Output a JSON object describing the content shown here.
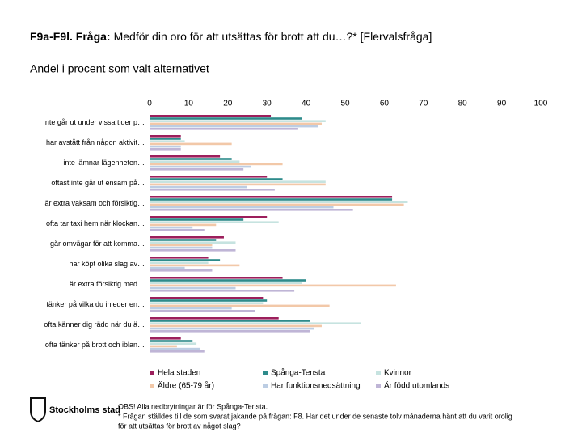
{
  "chart_data": {
    "type": "bar",
    "orientation": "horizontal",
    "title_label": "F9a-F9l. Fråga:",
    "title": "Medför din oro för att utsättas för brott att du…?* [Flervalsfråga]",
    "subtitle": "Andel i procent som valt alternativet",
    "categories": [
      "nte går ut under vissa tider p…",
      "har avstått från någon aktivit…",
      "inte lämnar lägenheten…",
      "oftast inte går ut ensam på…",
      "är extra vaksam och försiktig…",
      "ofta tar taxi hem när klockan…",
      "går omvägar för att komma…",
      "har köpt olika slag av…",
      "är extra försiktig med…",
      "tänker på vilka du inleder en…",
      "ofta känner dig rädd när du ä…",
      "ofta tänker på brott och iblan…"
    ],
    "series": [
      {
        "name": "Hela staden",
        "color": "#9c1f5c",
        "values": [
          31,
          8,
          18,
          30,
          62,
          30,
          19,
          15,
          34,
          29,
          33,
          8
        ]
      },
      {
        "name": "Spånga-Tensta",
        "color": "#2e8b8b",
        "values": [
          39,
          8,
          21,
          34,
          62,
          24,
          17,
          18,
          40,
          30,
          41,
          11
        ]
      },
      {
        "name": "Kvinnor",
        "color": "#c6e3e0",
        "values": [
          45,
          9,
          23,
          45,
          66,
          33,
          22,
          15,
          39,
          29,
          54,
          12
        ]
      },
      {
        "name": "Äldre (65-79 år)",
        "color": "#f2c8a8",
        "values": [
          44,
          21,
          34,
          45,
          65,
          17,
          16,
          23,
          63,
          46,
          44,
          7
        ]
      },
      {
        "name": "Har funktionsnedsättning",
        "color": "#bccde3",
        "values": [
          43,
          8,
          26,
          25,
          47,
          11,
          16,
          9,
          22,
          21,
          42,
          13
        ]
      },
      {
        "name": "Är född utomlands",
        "color": "#bfb5d6",
        "values": [
          38,
          8,
          24,
          32,
          52,
          14,
          22,
          16,
          37,
          27,
          41,
          14
        ]
      }
    ],
    "xlim": [
      0,
      100
    ],
    "xticks": [
      0,
      10,
      20,
      30,
      40,
      50,
      60,
      70,
      80,
      90,
      100
    ],
    "legend": "bottom",
    "logo": "Stockholms stad",
    "notes": [
      "OBS! Alla nedbrytningar är för Spånga-Tensta.",
      "* Frågan ställdes till de som svarat jakande på frågan: F8. Har det under de senaste tolv månaderna hänt att du varit orolig",
      "för att utsättas för brott av något slag?"
    ]
  }
}
